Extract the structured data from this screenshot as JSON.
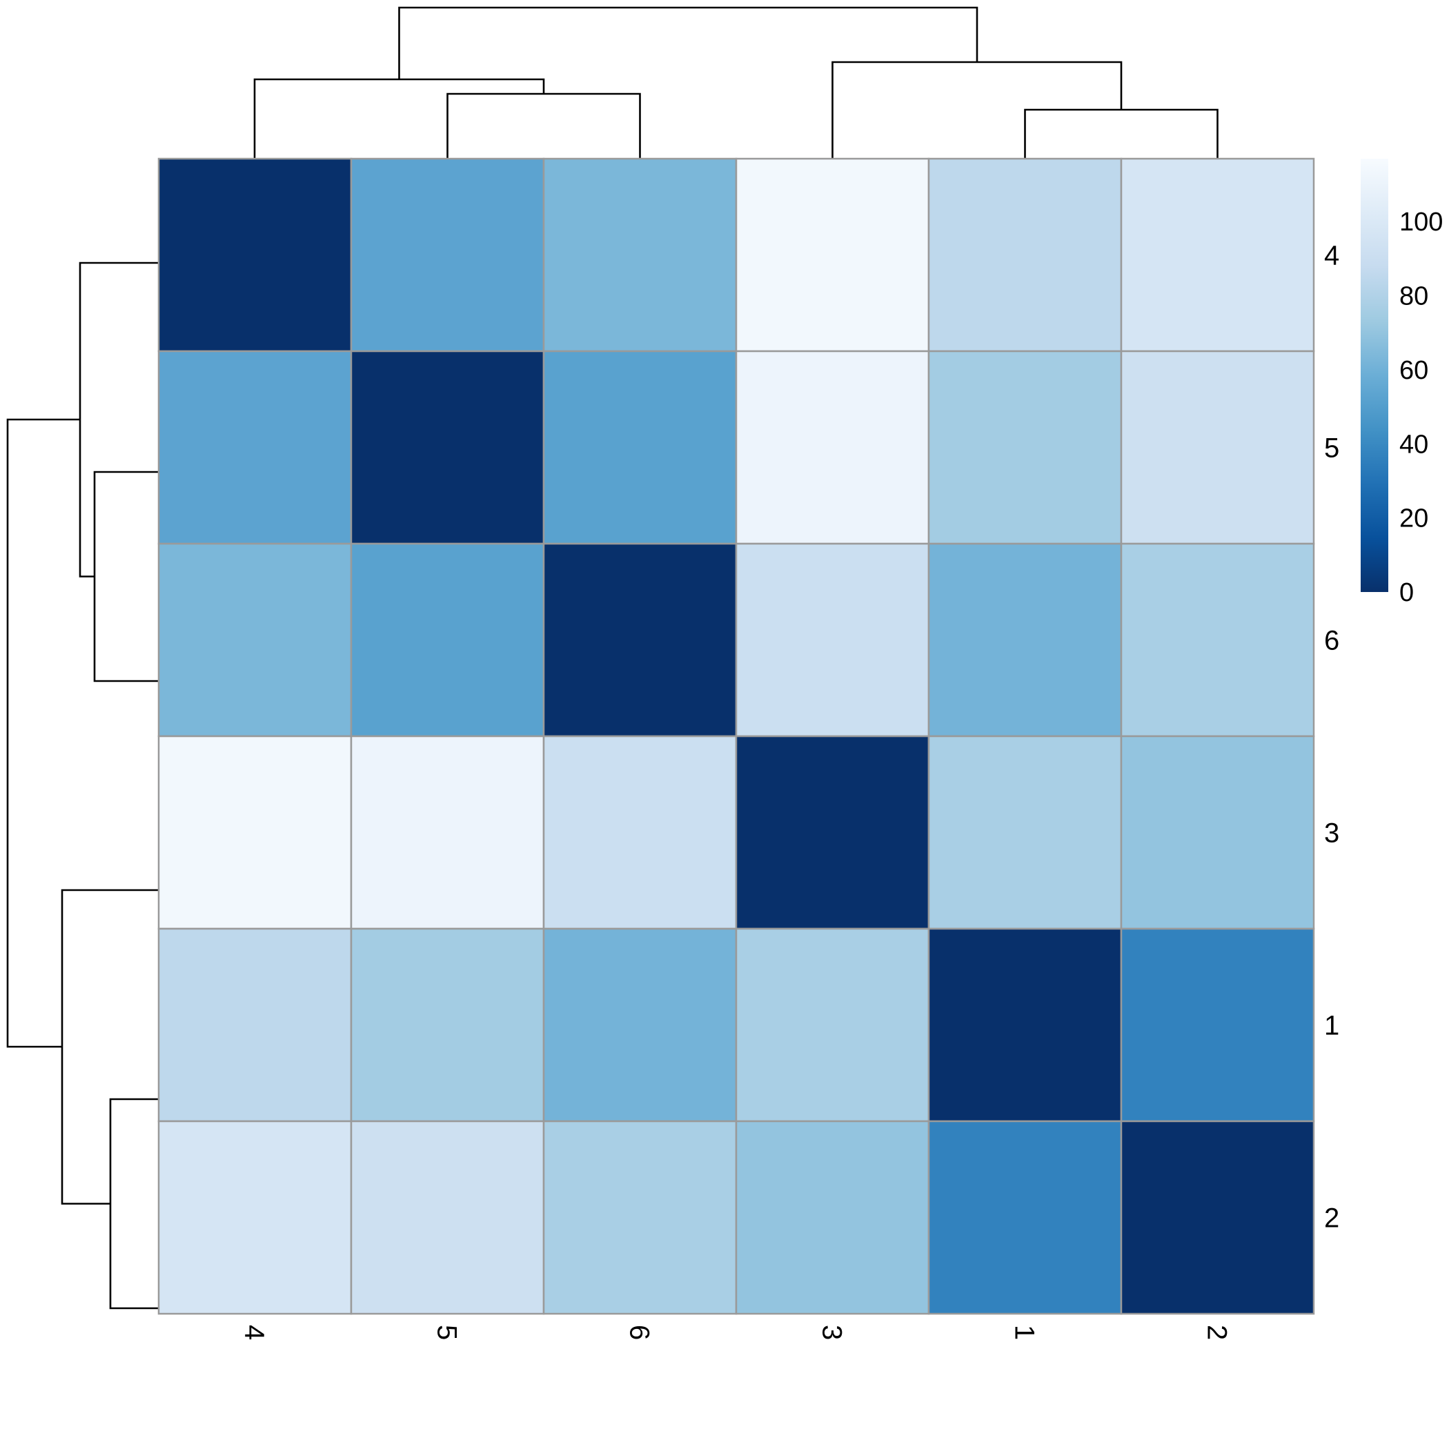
{
  "chart_data": {
    "type": "heatmap",
    "title": "",
    "xlabel": "",
    "ylabel": "",
    "row_labels": [
      "4",
      "5",
      "6",
      "3",
      "1",
      "2"
    ],
    "col_labels": [
      "4",
      "5",
      "6",
      "3",
      "1",
      "2"
    ],
    "values": [
      [
        0,
        53,
        63,
        114,
        85,
        97
      ],
      [
        53,
        0,
        52,
        111,
        75,
        92
      ],
      [
        63,
        52,
        0,
        91,
        61,
        77
      ],
      [
        114,
        111,
        91,
        0,
        77,
        70
      ],
      [
        85,
        75,
        61,
        77,
        0,
        37
      ],
      [
        97,
        92,
        77,
        70,
        37,
        0
      ]
    ],
    "value_range": [
      0,
      117
    ],
    "colormap": [
      "#08306b",
      "#08519c",
      "#2171b5",
      "#4292c6",
      "#6baed6",
      "#9ecae1",
      "#c6dbef",
      "#deebf7",
      "#f7fbff"
    ],
    "legend": {
      "position": "right",
      "ticks": [
        "0",
        "20",
        "40",
        "60",
        "80",
        "100"
      ]
    },
    "row_dendrogram_position": "left",
    "col_dendrogram_position": "top"
  }
}
